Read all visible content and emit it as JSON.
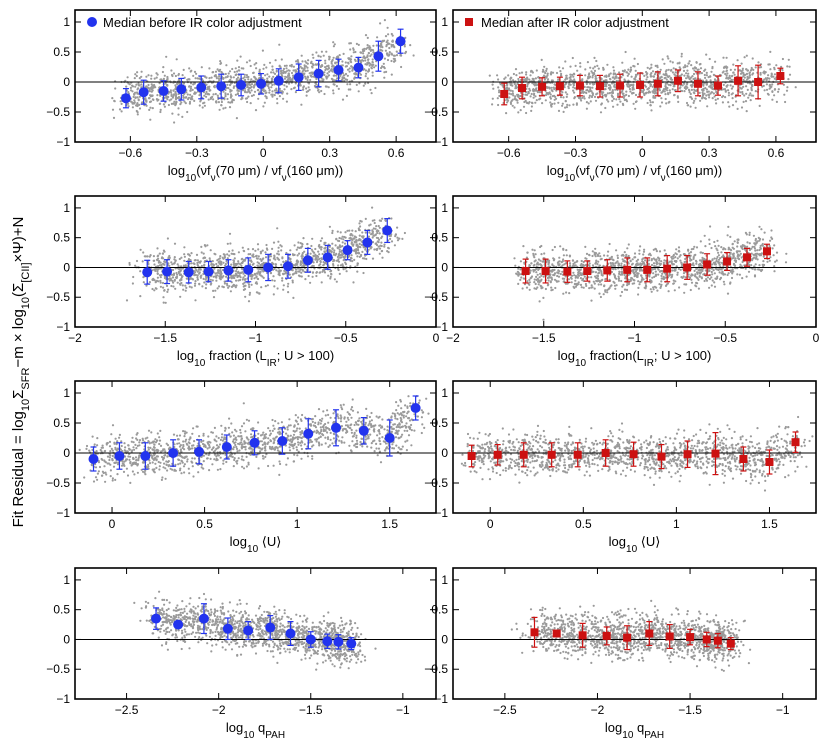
{
  "figure": {
    "ylabel": {
      "main": "Fit Residual = log",
      "sub1": "10",
      "part2": "Σ",
      "sub2": "SFR",
      "part3": "−m × log",
      "sub3": "10",
      "part4": "(Σ",
      "sub4": "[CII]",
      "part5": "×Ψ)+N"
    },
    "colors": {
      "before": "#2233ee",
      "after": "#cc1111",
      "scatter": "#9a9a9a"
    }
  },
  "chart_data": [
    {
      "type": "scatter",
      "row": 0,
      "col": 0,
      "variant": "before",
      "legend": "Median before IR color adjustment",
      "xlabel": {
        "pre": "log",
        "sub": "10",
        "post": "(νf",
        "sub2": "ν",
        "post2": "(70 μm) / νf",
        "sub3": "ν",
        "post3": "(160 μm))"
      },
      "xlim": [
        -0.85,
        0.78
      ],
      "ylim": [
        -1,
        1.2
      ],
      "xticks": [
        -0.6,
        -0.3,
        0,
        0.3,
        0.6
      ],
      "xtick_labels": [
        "−0.6",
        "−0.3",
        "0",
        "0.3",
        "0.6"
      ],
      "yticks": [
        -1,
        -0.5,
        0,
        0.5,
        1
      ],
      "ytick_labels": [
        "−1",
        "−0.5",
        "0",
        "0.5",
        "1"
      ],
      "median_x": [
        -0.62,
        -0.54,
        -0.45,
        -0.37,
        -0.28,
        -0.19,
        -0.1,
        -0.01,
        0.07,
        0.16,
        0.25,
        0.34,
        0.43,
        0.52,
        0.62
      ],
      "median_y": [
        -0.27,
        -0.17,
        -0.15,
        -0.12,
        -0.09,
        -0.07,
        -0.05,
        -0.03,
        0.02,
        0.08,
        0.14,
        0.2,
        0.24,
        0.43,
        0.68
      ],
      "err": [
        0.16,
        0.2,
        0.17,
        0.18,
        0.19,
        0.2,
        0.18,
        0.17,
        0.2,
        0.22,
        0.22,
        0.18,
        0.17,
        0.25,
        0.2
      ]
    },
    {
      "type": "scatter",
      "row": 0,
      "col": 1,
      "variant": "after",
      "legend": "Median after IR color adjustment",
      "xlabel": {
        "pre": "log",
        "sub": "10",
        "post": "(νf",
        "sub2": "ν",
        "post2": "(70 μm) / νf",
        "sub3": "ν",
        "post3": "(160 μm))"
      },
      "xlim": [
        -0.85,
        0.78
      ],
      "ylim": [
        -1,
        1.2
      ],
      "xticks": [
        -0.6,
        -0.3,
        0,
        0.3,
        0.6
      ],
      "xtick_labels": [
        "−0.6",
        "−0.3",
        "0",
        "0.3",
        "0.6"
      ],
      "yticks": [
        -1,
        -0.5,
        0,
        0.5,
        1
      ],
      "ytick_labels": [
        "−1",
        "−0.5",
        "0",
        "0.5",
        "1"
      ],
      "median_x": [
        -0.62,
        -0.54,
        -0.45,
        -0.37,
        -0.28,
        -0.19,
        -0.1,
        -0.01,
        0.07,
        0.16,
        0.25,
        0.34,
        0.43,
        0.52,
        0.62
      ],
      "median_y": [
        -0.2,
        -0.1,
        -0.08,
        -0.07,
        -0.06,
        -0.07,
        -0.06,
        -0.05,
        -0.03,
        0.02,
        -0.03,
        -0.06,
        0.02,
        0.0,
        0.1
      ],
      "err": [
        0.18,
        0.18,
        0.15,
        0.15,
        0.17,
        0.18,
        0.19,
        0.2,
        0.2,
        0.18,
        0.2,
        0.16,
        0.25,
        0.28,
        0.13
      ]
    },
    {
      "type": "scatter",
      "row": 1,
      "col": 0,
      "variant": "before",
      "xlabel": {
        "pre": "log",
        "sub": "10",
        "post": " fraction (L",
        "sub2": "IR",
        "post2": "; U > 100)",
        "sub3": "",
        "post3": ""
      },
      "xlim": [
        -2,
        0
      ],
      "ylim": [
        -1,
        1.2
      ],
      "xticks": [
        -2,
        -1.5,
        -1,
        -0.5,
        0
      ],
      "xtick_labels": [
        "−2",
        "−1.5",
        "−1",
        "−0.5",
        "0"
      ],
      "yticks": [
        -1,
        -0.5,
        0,
        0.5,
        1
      ],
      "ytick_labels": [
        "−1",
        "−0.5",
        "0",
        "0.5",
        "1"
      ],
      "median_x": [
        -1.6,
        -1.49,
        -1.37,
        -1.26,
        -1.15,
        -1.04,
        -0.93,
        -0.82,
        -0.71,
        -0.6,
        -0.49,
        -0.38,
        -0.27
      ],
      "median_y": [
        -0.08,
        -0.07,
        -0.08,
        -0.07,
        -0.05,
        -0.04,
        0.0,
        0.02,
        0.12,
        0.17,
        0.29,
        0.42,
        0.62
      ],
      "err": [
        0.2,
        0.2,
        0.18,
        0.17,
        0.18,
        0.2,
        0.22,
        0.2,
        0.2,
        0.2,
        0.16,
        0.2,
        0.2
      ]
    },
    {
      "type": "scatter",
      "row": 1,
      "col": 1,
      "variant": "after",
      "xlabel": {
        "pre": "log",
        "sub": "10",
        "post": " fraction(L",
        "sub2": "IR",
        "post2": "; U > 100)",
        "sub3": "",
        "post3": ""
      },
      "xlim": [
        -2,
        0
      ],
      "ylim": [
        -1,
        1.2
      ],
      "xticks": [
        -2,
        -1.5,
        -1,
        -0.5,
        0
      ],
      "xtick_labels": [
        "−2",
        "−1.5",
        "−1",
        "−0.5",
        "0"
      ],
      "yticks": [
        -1,
        -0.5,
        0,
        0.5,
        1
      ],
      "ytick_labels": [
        "−1",
        "−0.5",
        "0",
        "0.5",
        "1"
      ],
      "median_x": [
        -1.6,
        -1.49,
        -1.37,
        -1.26,
        -1.15,
        -1.04,
        -0.93,
        -0.82,
        -0.71,
        -0.6,
        -0.49,
        -0.38,
        -0.27
      ],
      "median_y": [
        -0.06,
        -0.06,
        -0.07,
        -0.06,
        -0.05,
        -0.04,
        -0.04,
        -0.02,
        0.0,
        0.05,
        0.1,
        0.17,
        0.27
      ],
      "err": [
        0.2,
        0.2,
        0.18,
        0.17,
        0.18,
        0.2,
        0.2,
        0.22,
        0.2,
        0.18,
        0.15,
        0.15,
        0.12
      ]
    },
    {
      "type": "scatter",
      "row": 2,
      "col": 0,
      "variant": "before",
      "xlabel": {
        "pre": "log",
        "sub": "10",
        "post": " ⟨U⟩",
        "sub2": "",
        "post2": "",
        "sub3": "",
        "post3": ""
      },
      "xlim": [
        -0.2,
        1.75
      ],
      "ylim": [
        -1,
        1.2
      ],
      "xticks": [
        0,
        0.5,
        1,
        1.5
      ],
      "xtick_labels": [
        "0",
        "0.5",
        "1",
        "1.5"
      ],
      "yticks": [
        -1,
        -0.5,
        0,
        0.5,
        1
      ],
      "ytick_labels": [
        "−1",
        "−0.5",
        "0",
        "0.5",
        "1"
      ],
      "median_x": [
        -0.1,
        0.04,
        0.18,
        0.33,
        0.47,
        0.62,
        0.77,
        0.92,
        1.06,
        1.21,
        1.36,
        1.5,
        1.64
      ],
      "median_y": [
        -0.1,
        -0.05,
        -0.05,
        0.0,
        0.02,
        0.1,
        0.17,
        0.2,
        0.32,
        0.42,
        0.37,
        0.25,
        0.75
      ],
      "err": [
        0.2,
        0.22,
        0.22,
        0.22,
        0.2,
        0.2,
        0.2,
        0.22,
        0.25,
        0.3,
        0.22,
        0.3,
        0.2
      ]
    },
    {
      "type": "scatter",
      "row": 2,
      "col": 1,
      "variant": "after",
      "xlabel": {
        "pre": "log",
        "sub": "10",
        "post": " ⟨U⟩",
        "sub2": "",
        "post2": "",
        "sub3": "",
        "post3": ""
      },
      "xlim": [
        -0.2,
        1.75
      ],
      "ylim": [
        -1,
        1.2
      ],
      "xticks": [
        0,
        0.5,
        1,
        1.5
      ],
      "xtick_labels": [
        "0",
        "0.5",
        "1",
        "1.5"
      ],
      "yticks": [
        -1,
        -0.5,
        0,
        0.5,
        1
      ],
      "ytick_labels": [
        "−1",
        "−0.5",
        "0",
        "0.5",
        "1"
      ],
      "median_x": [
        -0.1,
        0.04,
        0.18,
        0.33,
        0.47,
        0.62,
        0.77,
        0.92,
        1.06,
        1.21,
        1.36,
        1.5,
        1.64
      ],
      "median_y": [
        -0.05,
        -0.03,
        -0.03,
        -0.03,
        -0.03,
        0.0,
        -0.02,
        -0.06,
        -0.02,
        -0.01,
        -0.1,
        -0.15,
        0.18
      ],
      "err": [
        0.18,
        0.17,
        0.2,
        0.2,
        0.2,
        0.22,
        0.2,
        0.2,
        0.22,
        0.35,
        0.2,
        0.2,
        0.17
      ]
    },
    {
      "type": "scatter",
      "row": 3,
      "col": 0,
      "variant": "before",
      "xlabel": {
        "pre": "log",
        "sub": "10",
        "post": " q",
        "sub2": "PAH",
        "post2": "",
        "sub3": "",
        "post3": ""
      },
      "xlim": [
        -2.78,
        -0.82
      ],
      "ylim": [
        -1,
        1.2
      ],
      "xticks": [
        -2.5,
        -2,
        -1.5,
        -1
      ],
      "xtick_labels": [
        "−2.5",
        "−2",
        "−1.5",
        "−1"
      ],
      "yticks": [
        -1,
        -0.5,
        0,
        0.5,
        1
      ],
      "ytick_labels": [
        "−1",
        "−0.5",
        "0",
        "0.5",
        "1"
      ],
      "median_x": [
        -2.34,
        -2.22,
        -2.08,
        -1.95,
        -1.84,
        -1.72,
        -1.61,
        -1.5,
        -1.41,
        -1.35,
        -1.28
      ],
      "median_y": [
        0.35,
        0.25,
        0.35,
        0.18,
        0.15,
        0.2,
        0.1,
        0.0,
        -0.03,
        -0.04,
        -0.07
      ],
      "err": [
        0.18,
        0.0,
        0.25,
        0.18,
        0.15,
        0.2,
        0.2,
        0.13,
        0.12,
        0.12,
        0.1
      ]
    },
    {
      "type": "scatter",
      "row": 3,
      "col": 1,
      "variant": "after",
      "xlabel": {
        "pre": "log",
        "sub": "10",
        "post": " q",
        "sub2": "PAH",
        "post2": "",
        "sub3": "",
        "post3": ""
      },
      "xlim": [
        -2.78,
        -0.82
      ],
      "ylim": [
        -1,
        1.2
      ],
      "xticks": [
        -2.5,
        -2,
        -1.5,
        -1
      ],
      "xtick_labels": [
        "−2.5",
        "−2",
        "−1.5",
        "−1"
      ],
      "yticks": [
        -1,
        -0.5,
        0,
        0.5,
        1
      ],
      "ytick_labels": [
        "−1",
        "−0.5",
        "0",
        "0.5",
        "1"
      ],
      "median_x": [
        -2.34,
        -2.22,
        -2.08,
        -1.95,
        -1.84,
        -1.72,
        -1.61,
        -1.5,
        -1.41,
        -1.35,
        -1.28
      ],
      "median_y": [
        0.12,
        0.1,
        0.07,
        0.06,
        0.03,
        0.1,
        0.05,
        0.04,
        0.0,
        -0.02,
        -0.07
      ],
      "err": [
        0.25,
        0.05,
        0.2,
        0.15,
        0.2,
        0.2,
        0.2,
        0.13,
        0.12,
        0.12,
        0.1
      ]
    }
  ]
}
